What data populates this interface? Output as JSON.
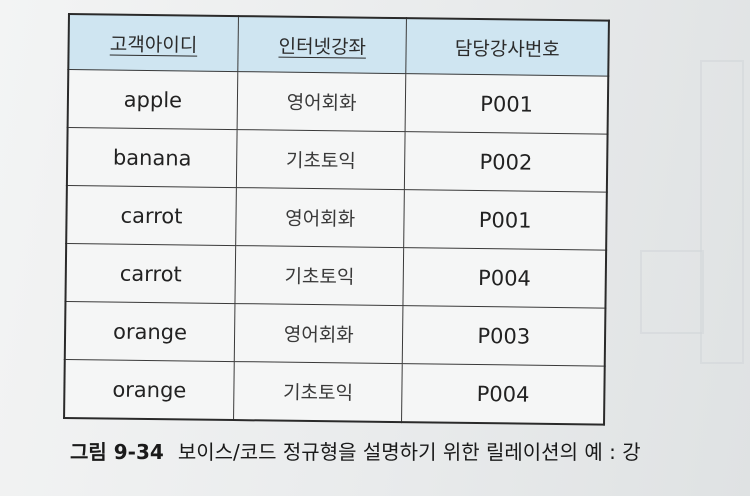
{
  "table": {
    "headers": [
      "고객아이디",
      "인터넷강좌",
      "담당강사번호"
    ],
    "rows": [
      [
        "apple",
        "영어회화",
        "P001"
      ],
      [
        "banana",
        "기초토익",
        "P002"
      ],
      [
        "carrot",
        "영어회화",
        "P001"
      ],
      [
        "carrot",
        "기초토익",
        "P004"
      ],
      [
        "orange",
        "영어회화",
        "P003"
      ],
      [
        "orange",
        "기초토익",
        "P004"
      ]
    ]
  },
  "caption": {
    "figure_number": "그림 9-34",
    "text": "보이스/코드 정규형을 설명하기 위한 릴레이션의 예 : 강"
  },
  "colors": {
    "header_background": "#cfe5f1",
    "page_background": "#eceeef"
  }
}
